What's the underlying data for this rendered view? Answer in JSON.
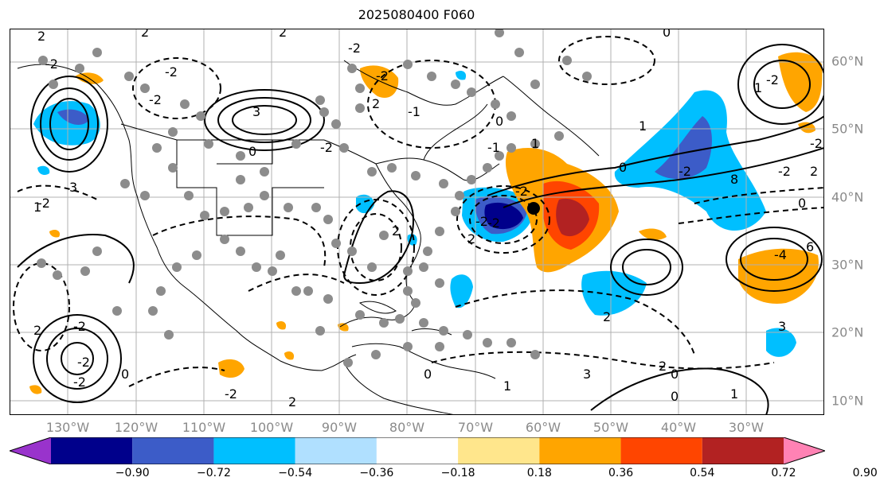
{
  "title": "2025080400 F060",
  "lon_labels": [
    "130°W",
    "120°W",
    "110°W",
    "100°W",
    "90°W",
    "80°W",
    "70°W",
    "60°W",
    "50°W",
    "40°W",
    "30°W"
  ],
  "lat_labels": [
    "60°N",
    "50°N",
    "40°N",
    "30°N",
    "20°N",
    "10°N"
  ],
  "colorbar": {
    "labels": [
      "−0.90",
      "−0.72",
      "−0.54",
      "−0.36",
      "−0.18",
      "0.18",
      "0.36",
      "0.54",
      "0.72",
      "0.90"
    ],
    "colors": [
      "#9933cc",
      "#00008b",
      "#3c5cc8",
      "#00bfff",
      "#b0e0ff",
      "#ffffff",
      "#ffe68c",
      "#ffa500",
      "#ff4500",
      "#b22222",
      "#ff82b4"
    ]
  },
  "contour_labels": [
    "2",
    "-2",
    "2",
    "-2",
    "-2",
    "3",
    "2",
    "0",
    "-2",
    "2",
    "-2",
    "0",
    "1",
    "-2",
    "-1",
    "1",
    "0",
    "2",
    "0",
    "-2",
    "2",
    "-2",
    "-2",
    "0",
    "1",
    "-2",
    "2",
    "-2",
    "-4",
    "6",
    "8",
    "3",
    "2",
    "-2",
    "-2",
    "-2",
    "0",
    "-2",
    "3",
    "-2",
    "2",
    "-2",
    "-1",
    "0",
    "2",
    "3",
    "1",
    "0",
    "1",
    "2",
    "0",
    "-2",
    "1"
  ],
  "colors": {
    "land_outline": "#000000",
    "gridline": "#b0b0b0",
    "station_marker": "#8c8c8c",
    "highlight_marker": "#000000"
  }
}
